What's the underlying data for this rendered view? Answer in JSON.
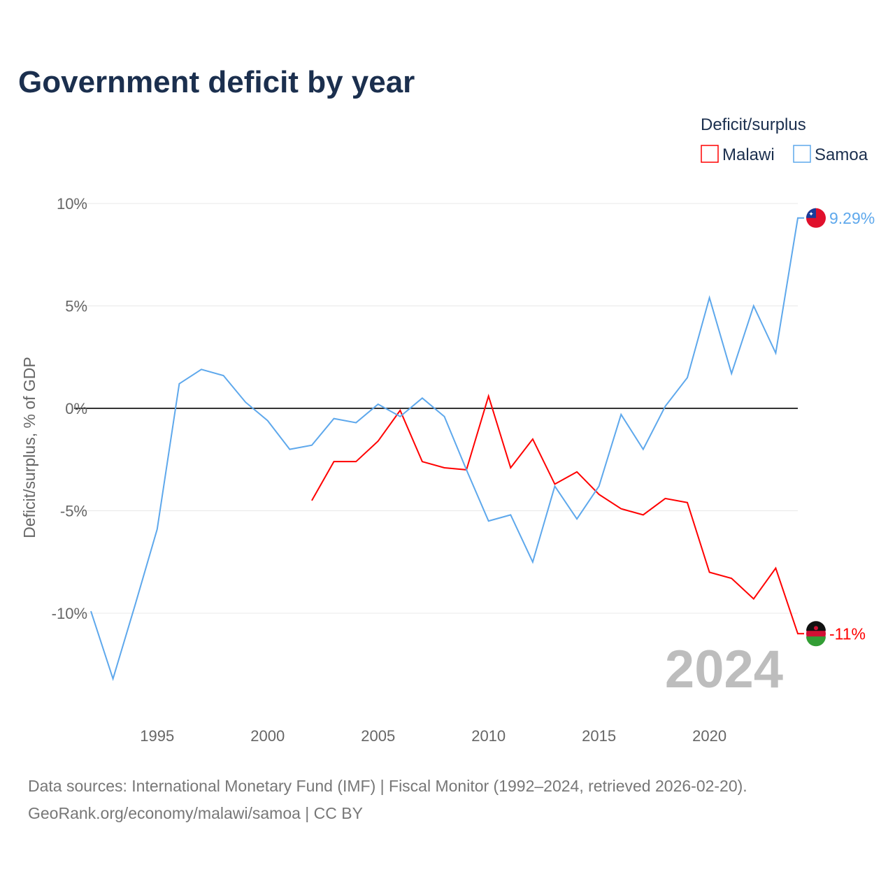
{
  "chart_data": {
    "type": "line",
    "title": "Government deficit by year",
    "xlabel": "",
    "ylabel": "Deficit/surplus, % of GDP",
    "ylim": [
      -13.5,
      10
    ],
    "xlim": [
      1992,
      2024
    ],
    "yticks": [
      10,
      5,
      0,
      -5,
      -10
    ],
    "ytick_labels": [
      "10%",
      "5%",
      "0%",
      "-5%",
      "-10%"
    ],
    "xticks": [
      1995,
      2000,
      2005,
      2010,
      2015,
      2020
    ],
    "xtick_labels": [
      "1995",
      "2000",
      "2005",
      "2010",
      "2015",
      "2020"
    ],
    "legend_title": "Deficit/surplus",
    "legend_position": "top-right",
    "year_label": "2024",
    "series": [
      {
        "name": "Malawi",
        "color": "#ff0000",
        "end_label": "-11%",
        "x": [
          2002,
          2003,
          2004,
          2005,
          2006,
          2007,
          2008,
          2009,
          2010,
          2011,
          2012,
          2013,
          2014,
          2015,
          2016,
          2017,
          2018,
          2019,
          2020,
          2021,
          2022,
          2023,
          2024
        ],
        "values": [
          -4.5,
          -2.6,
          -2.6,
          -1.6,
          -0.1,
          -2.6,
          -2.9,
          -3.0,
          0.6,
          -2.9,
          -1.5,
          -3.7,
          -3.1,
          -4.2,
          -4.9,
          -5.2,
          -4.4,
          -4.6,
          -8.0,
          -8.3,
          -9.3,
          -7.8,
          -11.0
        ]
      },
      {
        "name": "Samoa",
        "color": "#5ea8ec",
        "end_label": "9.29%",
        "x": [
          1992,
          1993,
          1994,
          1995,
          1996,
          1997,
          1998,
          1999,
          2000,
          2001,
          2002,
          2003,
          2004,
          2005,
          2006,
          2007,
          2008,
          2009,
          2010,
          2011,
          2012,
          2013,
          2014,
          2015,
          2016,
          2017,
          2018,
          2019,
          2020,
          2021,
          2022,
          2023,
          2024
        ],
        "values": [
          -9.9,
          -13.2,
          -9.6,
          -5.9,
          1.2,
          1.9,
          1.6,
          0.3,
          -0.6,
          -2.0,
          -1.8,
          -0.5,
          -0.7,
          0.2,
          -0.4,
          0.5,
          -0.4,
          -3.0,
          -5.5,
          -5.2,
          -7.5,
          -3.8,
          -5.4,
          -3.8,
          -0.3,
          -2.0,
          0.1,
          1.5,
          5.4,
          1.7,
          5.0,
          2.7,
          9.29
        ]
      }
    ]
  },
  "footer": {
    "line1": "Data sources: International Monetary Fund (IMF) | Fiscal Monitor (1992–2024, retrieved 2026-02-20).",
    "line2": "GeoRank.org/economy/malawi/samoa | CC BY"
  }
}
